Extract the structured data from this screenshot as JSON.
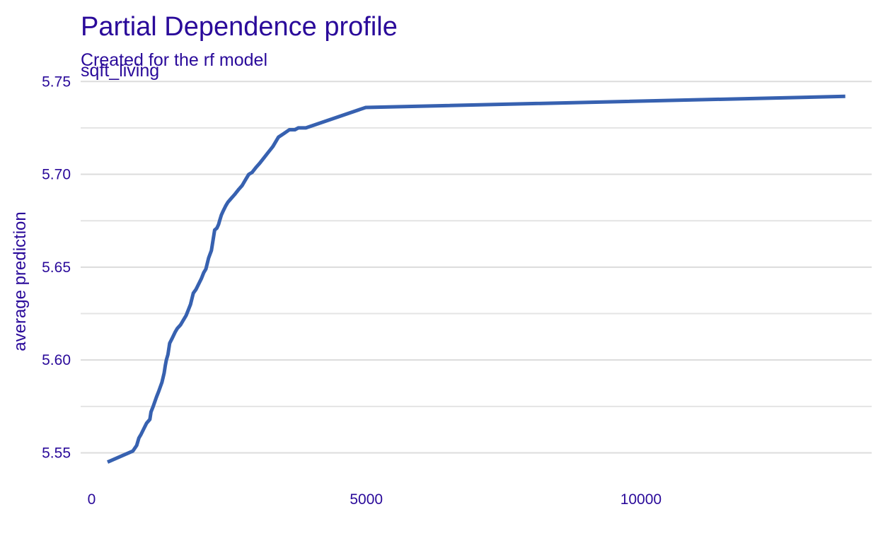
{
  "chart_data": {
    "type": "line",
    "title": "Partial Dependence profile",
    "subtitle": "Created for the rf model",
    "panel_label": "sqft_living",
    "xlabel": "",
    "ylabel": "average prediction",
    "xlim": [
      -200,
      14200
    ],
    "ylim": [
      5.538,
      5.752
    ],
    "x_ticks": [
      {
        "value": 0,
        "label": "0"
      },
      {
        "value": 5000,
        "label": "5000"
      },
      {
        "value": 10000,
        "label": "10000"
      }
    ],
    "y_ticks": [
      {
        "value": 5.55,
        "label": "5.55"
      },
      {
        "value": 5.6,
        "label": "5.60"
      },
      {
        "value": 5.65,
        "label": "5.65"
      },
      {
        "value": 5.7,
        "label": "5.70"
      },
      {
        "value": 5.75,
        "label": "5.75"
      }
    ],
    "y_minor_ticks": [
      5.575,
      5.625,
      5.675,
      5.725
    ],
    "grid": true,
    "legend": "none",
    "colors": {
      "text": "#2A0A9A",
      "line": "#3761B0",
      "grid": "#dcdcdc"
    },
    "series": [
      {
        "color": "#3761B0",
        "x": [
          290,
          750,
          820,
          860,
          900,
          950,
          1000,
          1060,
          1080,
          1120,
          1180,
          1220,
          1280,
          1320,
          1340,
          1360,
          1390,
          1420,
          1470,
          1520,
          1560,
          1620,
          1660,
          1720,
          1760,
          1800,
          1850,
          1900,
          1950,
          2000,
          2040,
          2080,
          2130,
          2180,
          2240,
          2280,
          2310,
          2330,
          2360,
          2390,
          2440,
          2480,
          2540,
          2600,
          2680,
          2740,
          2800,
          2860,
          2920,
          3000,
          3060,
          3140,
          3220,
          3300,
          3400,
          3500,
          3600,
          3700,
          3760,
          3820,
          3860,
          3900,
          4990,
          13720
        ],
        "y": [
          5.545,
          5.551,
          5.554,
          5.558,
          5.56,
          5.563,
          5.566,
          5.568,
          5.572,
          5.575,
          5.58,
          5.583,
          5.588,
          5.593,
          5.597,
          5.6,
          5.603,
          5.609,
          5.612,
          5.615,
          5.617,
          5.619,
          5.621,
          5.624,
          5.627,
          5.63,
          5.636,
          5.638,
          5.641,
          5.644,
          5.647,
          5.649,
          5.655,
          5.659,
          5.67,
          5.671,
          5.673,
          5.675,
          5.678,
          5.68,
          5.683,
          5.685,
          5.687,
          5.689,
          5.692,
          5.694,
          5.697,
          5.7,
          5.701,
          5.704,
          5.706,
          5.709,
          5.712,
          5.715,
          5.72,
          5.722,
          5.724,
          5.724,
          5.725,
          5.725,
          5.725,
          5.725,
          5.736,
          5.742
        ]
      }
    ]
  }
}
